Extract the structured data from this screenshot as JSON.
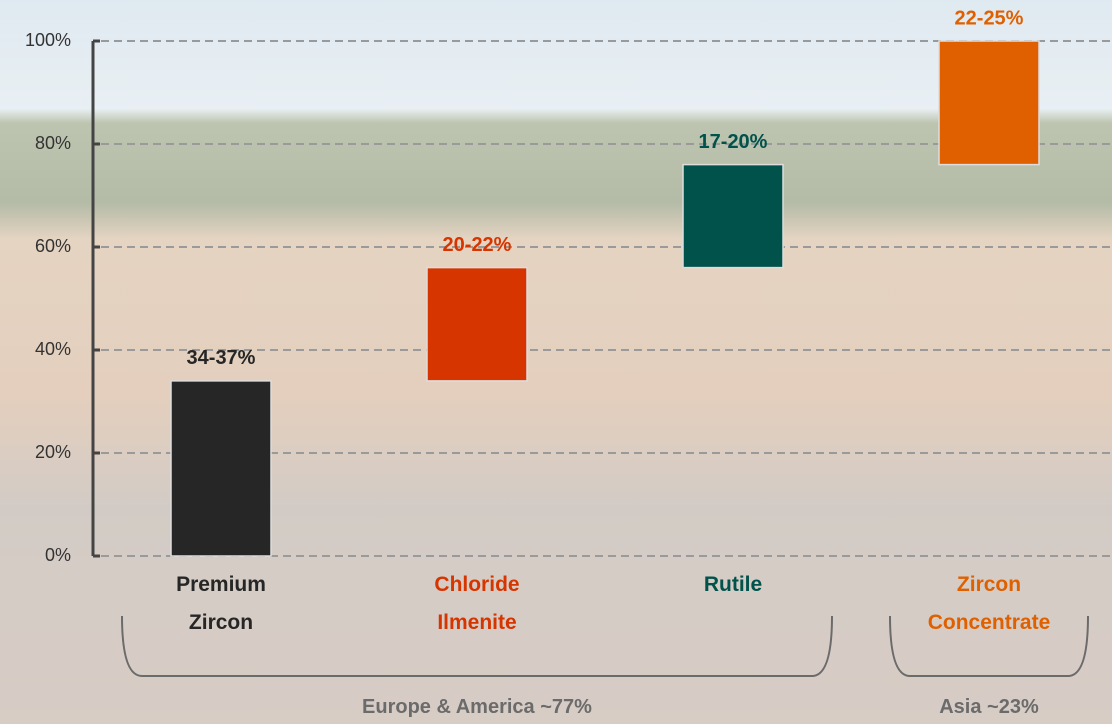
{
  "chart_data": {
    "type": "waterfall",
    "categories": [
      "Premium Zircon",
      "Chloride Ilmenite",
      "Rutile",
      "Zircon Concentrate"
    ],
    "values": [
      34,
      22,
      20,
      24
    ],
    "bar_labels": [
      "34-37%",
      "20-22%",
      "17-20%",
      "22-25%"
    ],
    "colors": [
      "#262626",
      "#d73500",
      "#00524b",
      "#e06000"
    ],
    "ylim": [
      0,
      100
    ],
    "yticks": [
      {
        "value": 0,
        "label": "0%"
      },
      {
        "value": 20,
        "label": "20%"
      },
      {
        "value": 40,
        "label": "40%"
      },
      {
        "value": 60,
        "label": "60%"
      },
      {
        "value": 80,
        "label": "80%"
      },
      {
        "value": 100,
        "label": "100%"
      }
    ],
    "grid": true,
    "groups": [
      {
        "label": "Europe & America ~77%",
        "from": 0,
        "to": 2
      },
      {
        "label": "Asia ~23%",
        "from": 3,
        "to": 3
      }
    ]
  }
}
